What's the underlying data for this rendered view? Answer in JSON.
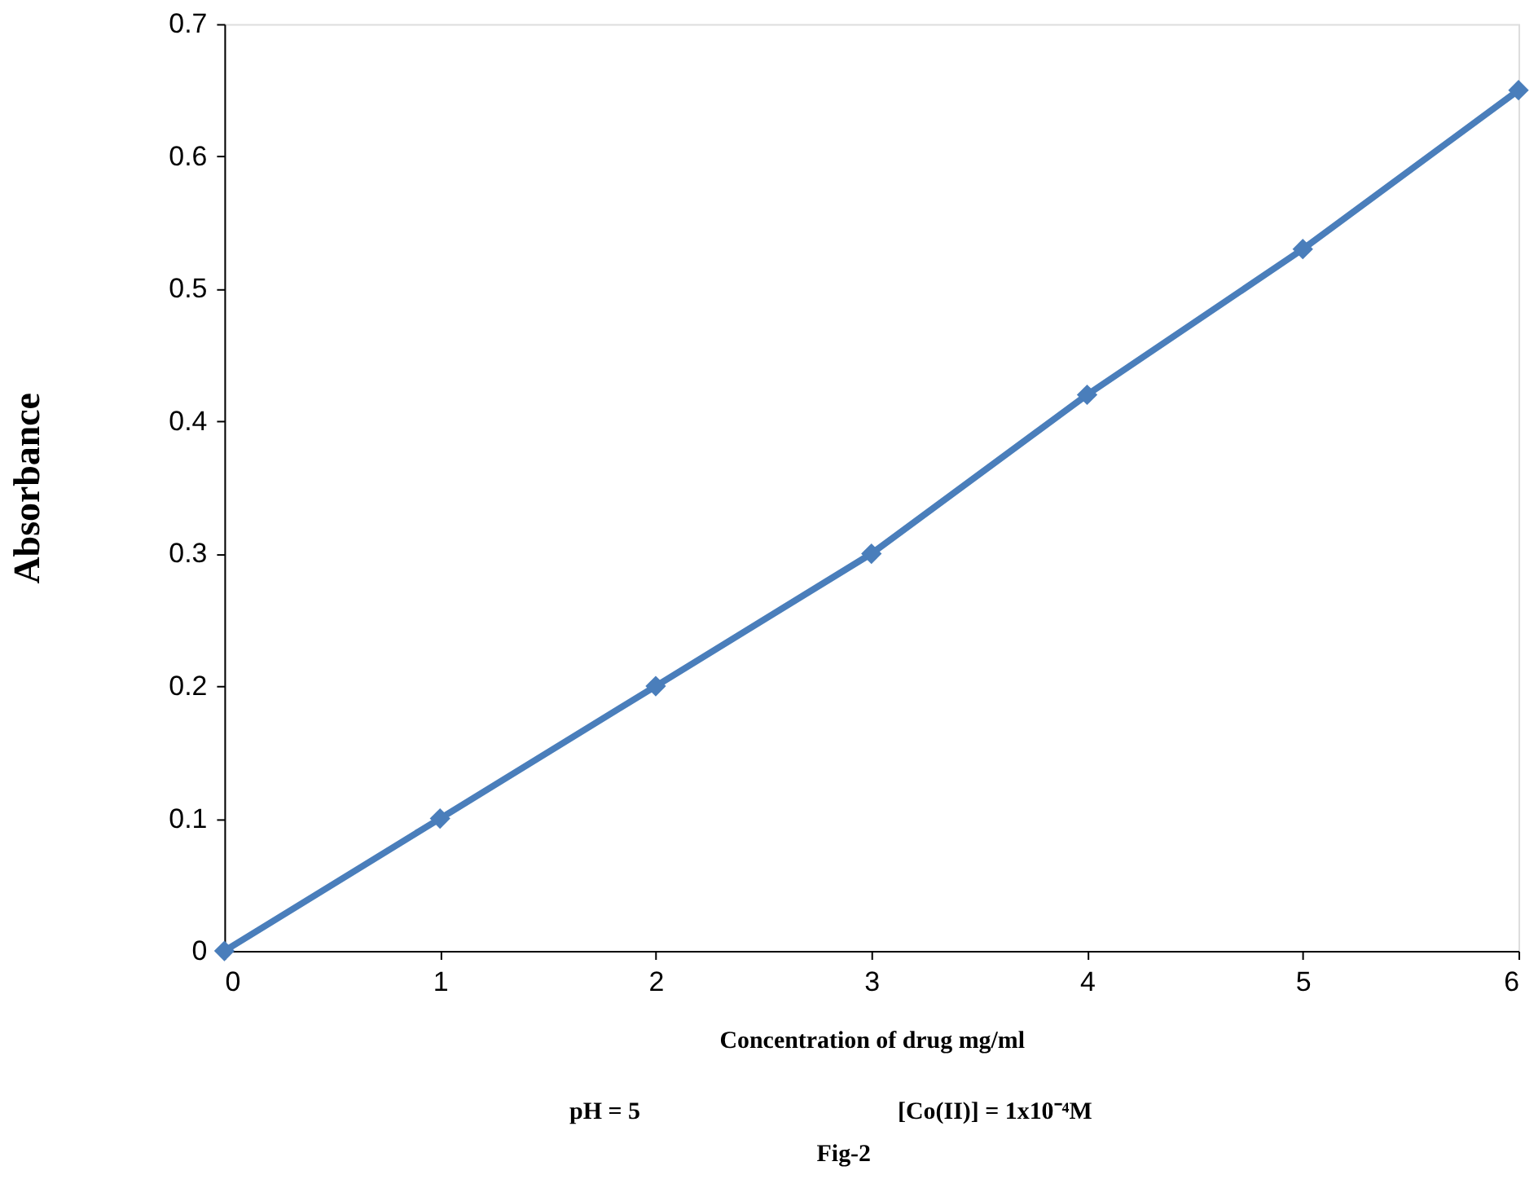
{
  "chart_data": {
    "type": "line",
    "x": [
      0,
      1,
      2,
      3,
      4,
      5,
      6
    ],
    "series": [
      {
        "color": "#4a7ebb",
        "values": [
          0,
          0.1,
          0.2,
          0.3,
          0.42,
          0.53,
          0.65
        ]
      }
    ],
    "xlim": [
      0,
      6
    ],
    "xticks": [
      0,
      1,
      2,
      3,
      4,
      5,
      6
    ],
    "ylim": [
      0,
      0.7
    ],
    "yticks": [
      0,
      0.1,
      0.2,
      0.3,
      0.4,
      0.5,
      0.6,
      0.7
    ],
    "xlabel": "Concentration of drug mg/ml",
    "ylabel": "Absorbance",
    "annotations": [
      "pH = 5",
      "[Co(II)] = 1x10⁻⁴M",
      "Fig-2"
    ],
    "marker": "diamond",
    "line_style": "solid",
    "grid": false
  }
}
